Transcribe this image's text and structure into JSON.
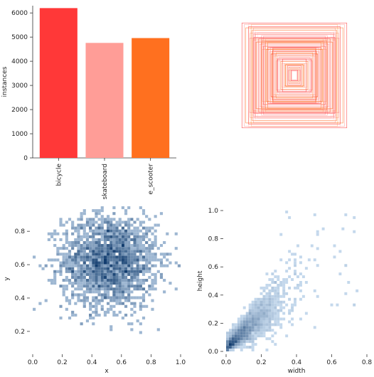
{
  "chart_data": [
    {
      "type": "bar",
      "categories": [
        "bicycle",
        "skateboard",
        "e_scooter"
      ],
      "values": [
        6200,
        4760,
        4960
      ],
      "colors": [
        "#ff3838",
        "#ff9d97",
        "#ff701f"
      ],
      "ylabel": "instances",
      "ylim": [
        0,
        6300
      ],
      "yticks": [
        0,
        1000,
        2000,
        3000,
        4000,
        5000,
        6000
      ]
    },
    {
      "type": "scatter",
      "description_kind": "bounding-box overlay (centered rectangles, normalized width/height)",
      "colors": [
        "#ff3838",
        "#ff9d97",
        "#ff701f"
      ],
      "boxes": [
        [
          0.97,
          0.97
        ],
        [
          0.93,
          0.94
        ],
        [
          0.9,
          0.88
        ],
        [
          0.85,
          0.9
        ],
        [
          0.82,
          0.78
        ],
        [
          0.78,
          0.84
        ],
        [
          0.75,
          0.7
        ],
        [
          0.72,
          0.76
        ],
        [
          0.7,
          0.62
        ],
        [
          0.66,
          0.68
        ],
        [
          0.63,
          0.58
        ],
        [
          0.6,
          0.64
        ],
        [
          0.57,
          0.54
        ],
        [
          0.54,
          0.6
        ],
        [
          0.52,
          0.48
        ],
        [
          0.49,
          0.52
        ],
        [
          0.46,
          0.44
        ],
        [
          0.43,
          0.4
        ],
        [
          0.4,
          0.46
        ],
        [
          0.37,
          0.36
        ],
        [
          0.34,
          0.42
        ],
        [
          0.31,
          0.3
        ],
        [
          0.28,
          0.34
        ],
        [
          0.25,
          0.26
        ],
        [
          0.22,
          0.3
        ],
        [
          0.19,
          0.22
        ],
        [
          0.16,
          0.2
        ],
        [
          0.13,
          0.18
        ],
        [
          0.1,
          0.15
        ],
        [
          0.08,
          0.12
        ],
        [
          0.06,
          0.1
        ],
        [
          0.05,
          0.08
        ]
      ]
    },
    {
      "type": "heatmap",
      "xlabel": "x",
      "ylabel": "y",
      "xlim": [
        0,
        1.0
      ],
      "ylim": [
        0.08,
        0.95
      ],
      "xticks": [
        0.0,
        0.2,
        0.4,
        0.6,
        0.8,
        1.0
      ],
      "yticks": [
        0.2,
        0.4,
        0.6,
        0.8
      ],
      "center": [
        0.52,
        0.62
      ],
      "spread": [
        0.16,
        0.14
      ],
      "bins": 50,
      "color": "#1f77b4"
    },
    {
      "type": "heatmap",
      "xlabel": "width",
      "ylabel": "height",
      "xlim": [
        0,
        0.8
      ],
      "ylim": [
        0,
        1.0
      ],
      "xticks": [
        0.0,
        0.2,
        0.4,
        0.6,
        0.8
      ],
      "yticks": [
        0.0,
        0.2,
        0.4,
        0.6,
        0.8,
        1.0
      ],
      "trend": "height roughly 1.3 x width, dense near origin",
      "bins": 50,
      "color": "#1f77b4"
    }
  ]
}
